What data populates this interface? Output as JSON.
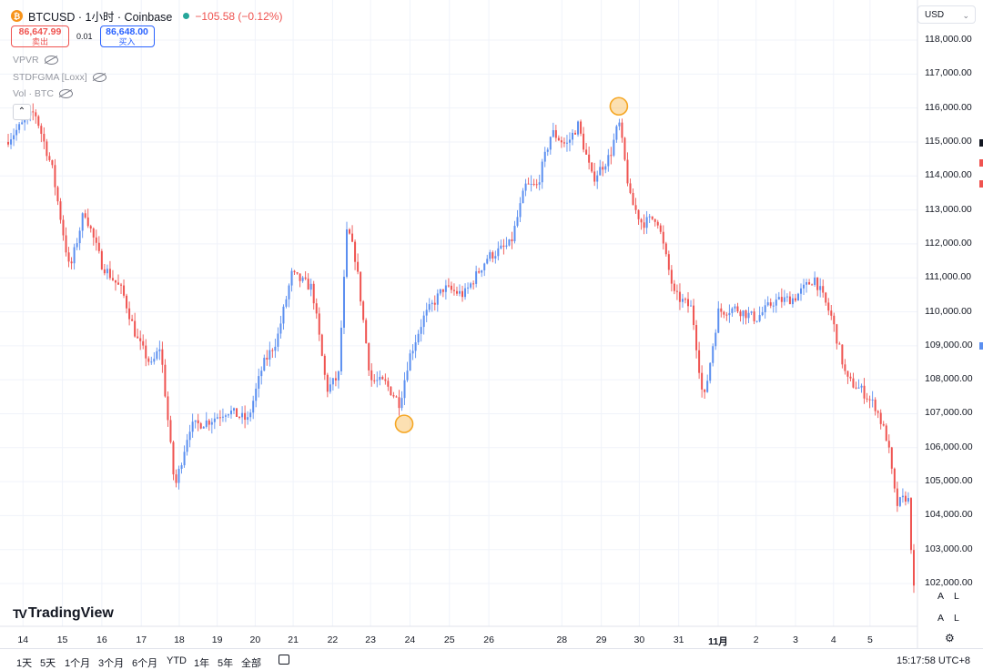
{
  "symbol": {
    "title": "BTCUSD · 1小时 · Coinbase",
    "change": "−105.58 (−0.12%)",
    "bid": "86,647.99",
    "bid_label": "卖出",
    "spread": "0.01",
    "ask": "86,648.00",
    "ask_label": "买入",
    "coin_icon": "bitcoin-icon"
  },
  "indicators": [
    {
      "label": "VPVR"
    },
    {
      "label": "STDFGMA [Loxx]"
    },
    {
      "label": "Vol · BTC"
    }
  ],
  "currency": "USD",
  "branding": "TradingView",
  "axis_buttons": [
    "A",
    "L",
    "A",
    "L"
  ],
  "bottom_bar": {
    "ranges": [
      "1天",
      "5天",
      "1个月",
      "3个月",
      "6个月",
      "YTD",
      "1年",
      "5年",
      "全部"
    ],
    "time": "15:17:58 UTC+8"
  },
  "colors": {
    "up": "#5b8ff0",
    "down": "#ef5350",
    "marker": "#f5a623"
  },
  "chart_data": {
    "type": "candlestick",
    "title": "BTCUSD · 1小时 · Coinbase",
    "ylim": [
      101700,
      118500
    ],
    "y_ticks": [
      118000,
      117000,
      116000,
      115000,
      114000,
      113000,
      112000,
      111000,
      110000,
      109000,
      108000,
      107000,
      106000,
      105000,
      104000,
      103000,
      102000
    ],
    "y_tick_labels": [
      "118,000.00",
      "117,000.00",
      "116,000.00",
      "115,000.00",
      "114,000.00",
      "113,000.00",
      "112,000.00",
      "111,000.00",
      "110,000.00",
      "109,000.00",
      "108,000.00",
      "107,000.00",
      "106,000.00",
      "105,000.00",
      "104,000.00",
      "103,000.00",
      "102,000.00"
    ],
    "x_ticks": [
      "14",
      "15",
      "16",
      "17",
      "18",
      "19",
      "20",
      "21",
      "22",
      "23",
      "24",
      "25",
      "26",
      "28",
      "29",
      "30",
      "31",
      "11月",
      "2",
      "3",
      "4",
      "5"
    ],
    "grid": true,
    "path_points": [
      {
        "x": 0.0,
        "y": 115000
      },
      {
        "x": 1.0,
        "y": 115900
      },
      {
        "x": 1.6,
        "y": 114200
      },
      {
        "x": 2.2,
        "y": 111200
      },
      {
        "x": 2.7,
        "y": 113000
      },
      {
        "x": 3.3,
        "y": 111400
      },
      {
        "x": 4.0,
        "y": 110600
      },
      {
        "x": 4.5,
        "y": 109200
      },
      {
        "x": 5.0,
        "y": 108400
      },
      {
        "x": 5.3,
        "y": 109000
      },
      {
        "x": 5.8,
        "y": 104800
      },
      {
        "x": 6.3,
        "y": 106600
      },
      {
        "x": 7.0,
        "y": 106800
      },
      {
        "x": 7.6,
        "y": 107100
      },
      {
        "x": 8.3,
        "y": 106800
      },
      {
        "x": 8.8,
        "y": 108400
      },
      {
        "x": 9.3,
        "y": 109200
      },
      {
        "x": 9.8,
        "y": 111100
      },
      {
        "x": 10.5,
        "y": 110700
      },
      {
        "x": 11.0,
        "y": 107700
      },
      {
        "x": 11.4,
        "y": 108100
      },
      {
        "x": 11.7,
        "y": 112500
      },
      {
        "x": 12.0,
        "y": 111500
      },
      {
        "x": 12.5,
        "y": 108000
      },
      {
        "x": 13.0,
        "y": 107900
      },
      {
        "x": 13.5,
        "y": 107300
      },
      {
        "x": 13.8,
        "y": 108600
      },
      {
        "x": 14.3,
        "y": 109800
      },
      {
        "x": 15.0,
        "y": 110700
      },
      {
        "x": 15.7,
        "y": 110500
      },
      {
        "x": 16.5,
        "y": 111600
      },
      {
        "x": 17.3,
        "y": 112000
      },
      {
        "x": 17.8,
        "y": 113700
      },
      {
        "x": 18.2,
        "y": 113700
      },
      {
        "x": 18.7,
        "y": 115300
      },
      {
        "x": 19.2,
        "y": 114900
      },
      {
        "x": 19.6,
        "y": 115500
      },
      {
        "x": 20.1,
        "y": 113900
      },
      {
        "x": 20.7,
        "y": 114600
      },
      {
        "x": 21.0,
        "y": 115600
      },
      {
        "x": 21.4,
        "y": 113300
      },
      {
        "x": 21.8,
        "y": 112600
      },
      {
        "x": 22.3,
        "y": 112800
      },
      {
        "x": 22.9,
        "y": 110500
      },
      {
        "x": 23.5,
        "y": 110100
      },
      {
        "x": 23.9,
        "y": 107300
      },
      {
        "x": 24.4,
        "y": 110000
      },
      {
        "x": 25.0,
        "y": 110100
      },
      {
        "x": 25.7,
        "y": 109800
      },
      {
        "x": 26.3,
        "y": 110300
      },
      {
        "x": 27.0,
        "y": 110400
      },
      {
        "x": 27.7,
        "y": 111000
      },
      {
        "x": 28.3,
        "y": 109800
      },
      {
        "x": 28.8,
        "y": 108000
      },
      {
        "x": 29.3,
        "y": 107700
      },
      {
        "x": 29.8,
        "y": 107200
      },
      {
        "x": 30.2,
        "y": 106200
      },
      {
        "x": 30.5,
        "y": 104300
      },
      {
        "x": 30.9,
        "y": 104600
      },
      {
        "x": 31.1,
        "y": 101800
      }
    ],
    "markers": [
      {
        "label": "low",
        "x": 13.65,
        "y": 106700
      },
      {
        "label": "high",
        "x": 21.0,
        "y": 116050
      }
    ],
    "x_tick_positions": [
      0.6,
      1.95,
      3.3,
      4.65,
      5.95,
      7.25,
      8.55,
      9.85,
      11.2,
      12.5,
      13.85,
      15.2,
      16.55,
      19.05,
      20.4,
      21.7,
      23.05,
      24.4,
      25.7,
      27.05,
      28.35,
      29.6
    ]
  }
}
